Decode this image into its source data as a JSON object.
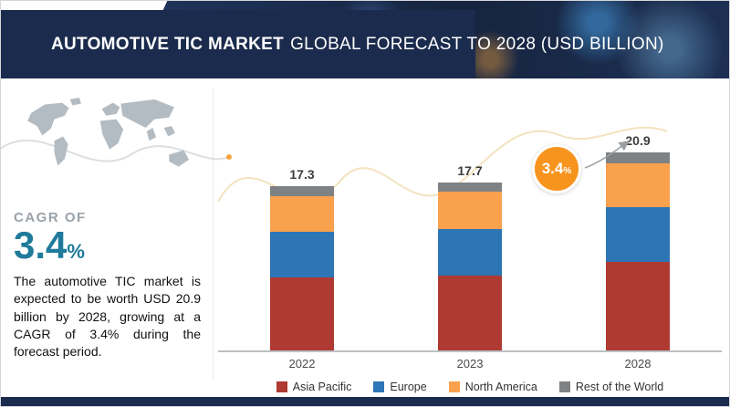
{
  "header": {
    "title_bold": "AUTOMOTIVE TIC MARKET",
    "title_rest": "GLOBAL FORECAST TO 2028 (USD BILLION)"
  },
  "left_panel": {
    "cagr_label": "CAGR OF",
    "cagr_value": "3.4",
    "cagr_percent": "%",
    "description": "The automotive TIC market is expected to be worth USD 20.9 billion by 2028, growing at a CAGR of 3.4% during the forecast period."
  },
  "badge": {
    "value": "3.4",
    "percent": "%"
  },
  "colors": {
    "header_navy": "#1b2b4d",
    "cagr_teal": "#1f7a9b",
    "badge_orange": "#f7941e"
  },
  "chart_data": {
    "type": "bar",
    "stacked": true,
    "title": "Automotive TIC Market Global Forecast to 2028 (USD Billion)",
    "categories": [
      "2022",
      "2023",
      "2028"
    ],
    "totals": [
      17.3,
      17.7,
      20.9
    ],
    "series": [
      {
        "name": "Asia Pacific",
        "color": "#ae3a32",
        "values": [
          7.7,
          7.9,
          9.3
        ]
      },
      {
        "name": "Europe",
        "color": "#2e75b6",
        "values": [
          4.8,
          4.9,
          5.8
        ]
      },
      {
        "name": "North America",
        "color": "#f9a14d",
        "values": [
          3.8,
          3.9,
          4.6
        ]
      },
      {
        "name": "Rest of the World",
        "color": "#7f8284",
        "values": [
          1.0,
          1.0,
          1.2
        ]
      }
    ],
    "ylim": [
      0,
      24
    ],
    "grid": false,
    "legend_position": "bottom",
    "annotation": {
      "label": "3.4%",
      "meaning": "CAGR 2023-2028"
    }
  }
}
